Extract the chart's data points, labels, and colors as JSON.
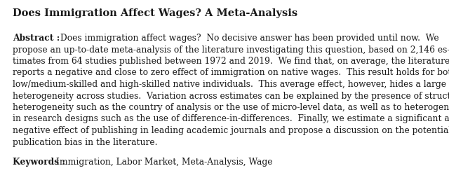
{
  "title": "Does Immigration Affect Wages? A Meta-Analysis",
  "abstract_label": "Abstract : ",
  "abstract_text": "Does immigration affect wages?  No decisive answer has been provided until now.  We propose an up-to-date meta-analysis of the literature investigating this question, based on 2,146 es-timates from 64 studies published between 1972 and 2019.  We find that, on average, the literature reports a negative and close to zero effect of immigration on native wages.  This result holds for both low/medium-skilled and high-skilled native individuals.  This average effect, however, hides a large heterogeneity across studies.  Variation across estimates can be explained by the presence of structural heterogeneity such as the country of analysis or the use of micro-level data, as well as to heterogeneity in research designs such as the use of difference-in-differences.  Finally, we estimate a significant and negative effect of publishing in leading academic journals and propose a discussion on the potential publication bias in the literature.",
  "keywords_label": "Keywords : ",
  "keywords_text": "Immigration, Labor Market, Meta-Analysis, Wage",
  "background_color": "#ffffff",
  "text_color": "#1a1a1a",
  "title_fontsize": 10.5,
  "body_fontsize": 8.8,
  "font_family": "DejaVu Serif"
}
